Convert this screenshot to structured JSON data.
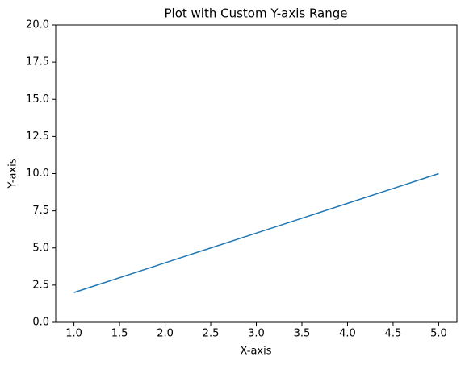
{
  "chart_data": {
    "type": "line",
    "title": "Plot with Custom Y-axis Range",
    "x_label": "X-axis",
    "y_label": "Y-axis",
    "x": [
      1,
      2,
      3,
      4,
      5
    ],
    "series": [
      {
        "color": "#1f77b4",
        "values": [
          2,
          4,
          6,
          8,
          10
        ]
      }
    ],
    "xlim": [
      0.8,
      5.2
    ],
    "xticks": [
      {
        "value": 1,
        "label": "1.0"
      },
      1.5,
      {
        "value": 2,
        "label": "2.0"
      },
      2.5,
      {
        "value": 3,
        "label": "3.0"
      },
      3.5,
      {
        "value": 4,
        "label": "4.0"
      },
      4.5,
      {
        "value": 5,
        "label": "5.0"
      }
    ],
    "ylim": [
      0,
      20
    ],
    "yticks": [
      {
        "value": 0,
        "label": "0.0"
      },
      2.5,
      {
        "value": 5,
        "label": "5.0"
      },
      7.5,
      {
        "value": 10,
        "label": "10.0"
      },
      12.5,
      {
        "value": 15,
        "label": "15.0"
      },
      17.5,
      {
        "value": 20,
        "label": "20.0"
      }
    ],
    "grid": false
  }
}
